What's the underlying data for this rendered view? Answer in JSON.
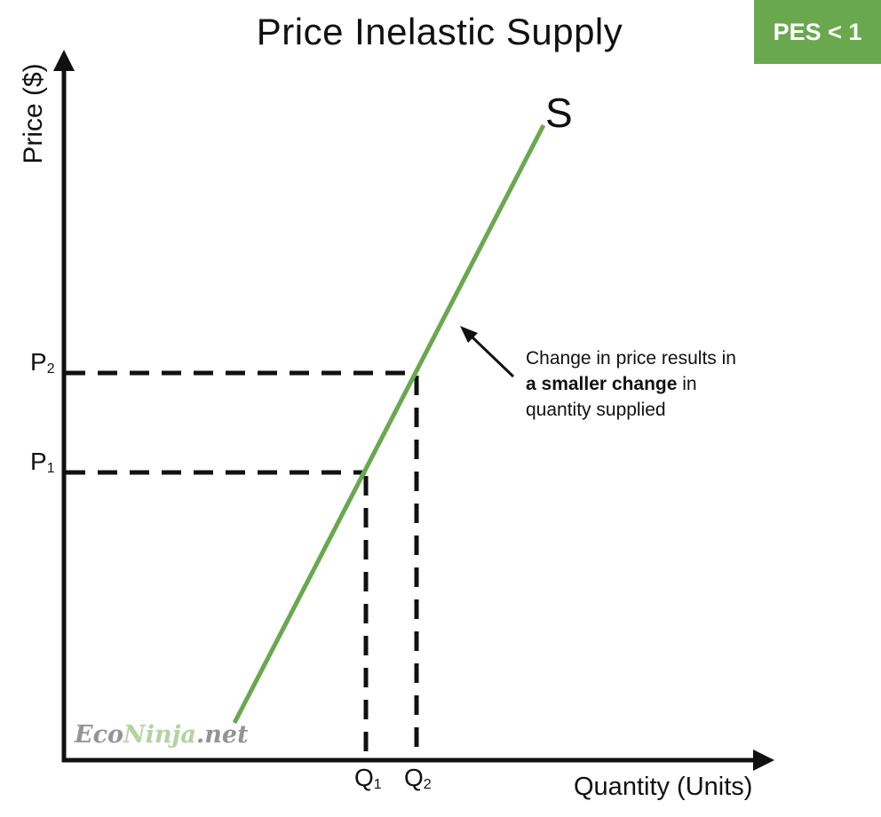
{
  "diagram": {
    "title": "Price Inelastic Supply",
    "badge": {
      "text": "PES < 1",
      "background": "#6aa84f"
    },
    "axes": {
      "y_label": "Price ($)",
      "x_label": "Quantity (Units)",
      "color": "#111111"
    },
    "curve": {
      "label": "S",
      "color": "#6aa84f"
    },
    "price_levels": [
      {
        "label": "P",
        "subscript": "2"
      },
      {
        "label": "P",
        "subscript": "1"
      }
    ],
    "quantity_levels": [
      {
        "label": "Q",
        "subscript": "1"
      },
      {
        "label": "Q",
        "subscript": "2"
      }
    ],
    "annotation": {
      "line1": "Change in price results in",
      "bold": "a smaller change",
      "rest": " in",
      "line3": "quantity supplied"
    },
    "watermark": {
      "part1": "Eco",
      "part2": "Ninja",
      "part3": ".net",
      "color1": "#777777",
      "color2": "#9cc887",
      "color3": "#777777"
    }
  }
}
